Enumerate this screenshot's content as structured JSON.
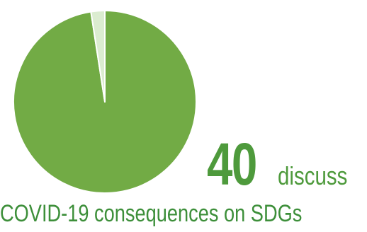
{
  "chart_data": {
    "type": "pie",
    "title": "",
    "slices": [
      {
        "label": "",
        "value": 40,
        "color": "#72ab45"
      },
      {
        "label": "",
        "value": 1,
        "color": "#dbecd0"
      }
    ],
    "start_angle_deg": 0,
    "clockwise": true
  },
  "stat": {
    "number": "40",
    "verb": "discuss",
    "caption": "COVID-19 consequences on SDGs"
  },
  "colors": {
    "text_green": "#4e9a3c",
    "slice_border": "#ffffff"
  }
}
